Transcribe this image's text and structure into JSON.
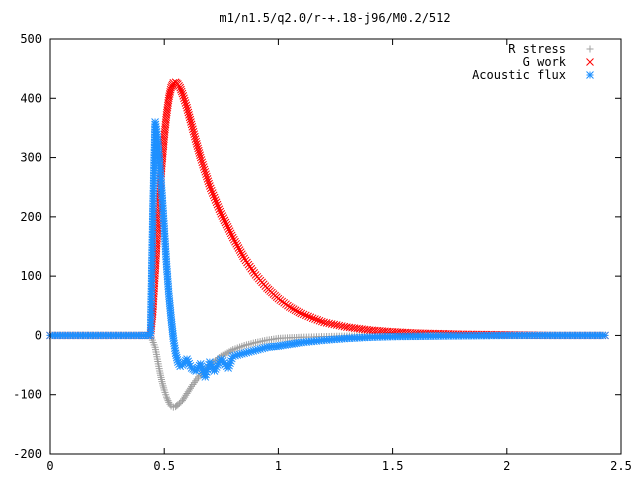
{
  "chart_data": {
    "type": "scatter",
    "title": "m1/n1.5/q2.0/r-+.18-j96/M0.2/512",
    "xlabel": "",
    "ylabel": "",
    "xlim": [
      0,
      2.5
    ],
    "ylim": [
      -200,
      500
    ],
    "xticks": [
      0,
      0.5,
      1,
      1.5,
      2,
      2.5
    ],
    "xtick_labels": [
      "0",
      "0.5",
      "1",
      "1.5",
      "2",
      "2.5"
    ],
    "yticks": [
      -200,
      -100,
      0,
      100,
      200,
      300,
      400,
      500
    ],
    "ytick_labels": [
      "-200",
      "-100",
      "0",
      "100",
      "200",
      "300",
      "400",
      "500"
    ],
    "grid": false,
    "legend_position": "top-right",
    "series": [
      {
        "name": "R stress",
        "marker": "plus",
        "color": "#a0a0a0",
        "x": [
          0.0,
          0.1,
          0.2,
          0.3,
          0.4,
          0.44,
          0.46,
          0.47,
          0.48,
          0.49,
          0.5,
          0.51,
          0.52,
          0.53,
          0.54,
          0.55,
          0.56,
          0.58,
          0.6,
          0.62,
          0.65,
          0.7,
          0.75,
          0.8,
          0.85,
          0.9,
          0.95,
          1.0,
          1.05,
          1.1,
          1.2,
          1.3,
          1.4,
          1.5,
          1.7,
          2.0,
          2.2,
          2.43
        ],
        "y": [
          0,
          0,
          0,
          0,
          0,
          0,
          -20,
          -40,
          -60,
          -78,
          -92,
          -104,
          -113,
          -119,
          -121,
          -120,
          -117,
          -110,
          -98,
          -86,
          -70,
          -50,
          -35,
          -24,
          -17,
          -12,
          -8,
          -5,
          -4,
          -3,
          -2,
          -1,
          -1,
          0,
          0,
          0,
          0,
          0
        ]
      },
      {
        "name": "G work",
        "marker": "cross",
        "color": "#ff0000",
        "x": [
          0.0,
          0.2,
          0.4,
          0.44,
          0.45,
          0.46,
          0.47,
          0.48,
          0.49,
          0.5,
          0.51,
          0.52,
          0.53,
          0.54,
          0.55,
          0.56,
          0.57,
          0.58,
          0.6,
          0.62,
          0.64,
          0.66,
          0.7,
          0.75,
          0.8,
          0.85,
          0.9,
          0.95,
          1.0,
          1.05,
          1.1,
          1.15,
          1.2,
          1.3,
          1.4,
          1.5,
          1.6,
          1.7,
          1.8,
          2.0,
          2.2,
          2.43
        ],
        "y": [
          0,
          0,
          0,
          0,
          40,
          105,
          172,
          235,
          290,
          335,
          372,
          400,
          418,
          426,
          427,
          424,
          418,
          408,
          384,
          356,
          327,
          300,
          252,
          205,
          165,
          130,
          102,
          80,
          62,
          48,
          37,
          29,
          22,
          14,
          9,
          6,
          4,
          3,
          2,
          1,
          0,
          0
        ]
      },
      {
        "name": "Acoustic flux",
        "marker": "star",
        "color": "#1e90ff",
        "x": [
          0.0,
          0.1,
          0.2,
          0.3,
          0.4,
          0.44,
          0.45,
          0.46,
          0.47,
          0.48,
          0.49,
          0.5,
          0.51,
          0.52,
          0.53,
          0.54,
          0.55,
          0.56,
          0.57,
          0.58,
          0.59,
          0.6,
          0.62,
          0.64,
          0.66,
          0.68,
          0.7,
          0.72,
          0.75,
          0.78,
          0.8,
          0.85,
          0.9,
          0.95,
          1.0,
          1.05,
          1.1,
          1.2,
          1.3,
          1.4,
          1.5,
          1.7,
          2.0,
          2.2,
          2.43
        ],
        "y": [
          0,
          0,
          0,
          0,
          0,
          0,
          205,
          360,
          335,
          290,
          240,
          180,
          120,
          70,
          30,
          -5,
          -30,
          -45,
          -52,
          -50,
          -45,
          -40,
          -55,
          -60,
          -48,
          -70,
          -45,
          -60,
          -40,
          -55,
          -35,
          -30,
          -25,
          -20,
          -18,
          -15,
          -12,
          -8,
          -5,
          -3,
          -2,
          -1,
          0,
          0,
          0
        ]
      }
    ]
  }
}
